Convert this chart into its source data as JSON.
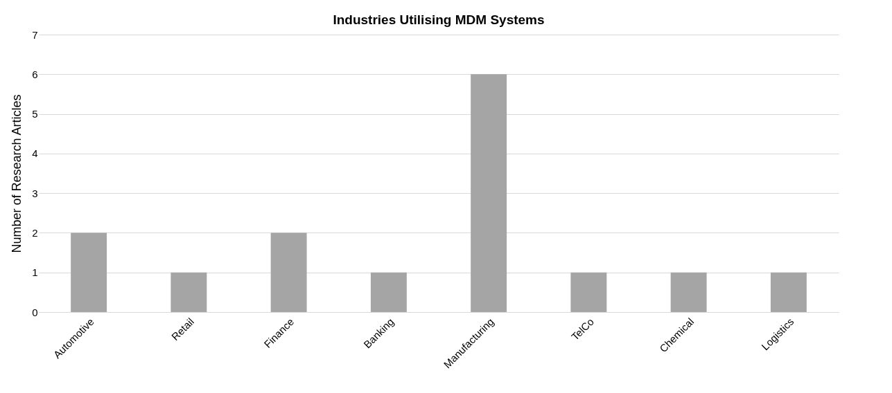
{
  "chart_data": {
    "type": "bar",
    "title": "Industries Utilising MDM Systems",
    "ylabel": "Number of Research Articles",
    "categories": [
      "Automotive",
      "Retail",
      "Finance",
      "Banking",
      "Manufacturing",
      "TelCo",
      "Chemical",
      "Logistics"
    ],
    "values": [
      2,
      1,
      2,
      1,
      6,
      1,
      1,
      1
    ],
    "color": "#a5a5a5",
    "ylim": [
      0,
      7
    ],
    "yticks": [
      0,
      1,
      2,
      3,
      4,
      5,
      6,
      7
    ],
    "grid": "y"
  }
}
